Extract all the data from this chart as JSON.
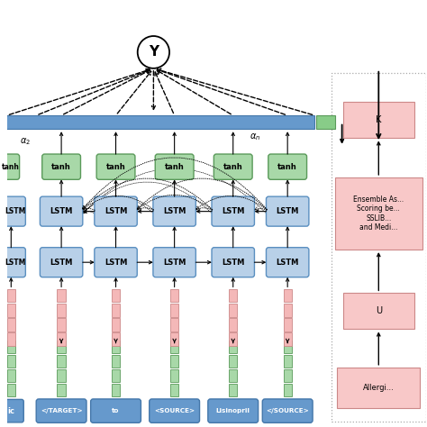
{
  "bg_color": "#ffffff",
  "lstm_fc": "#b8d0e8",
  "lstm_ec": "#5a8fc0",
  "tanh_fc": "#a8d8a8",
  "tanh_ec": "#5a9a5a",
  "pink_fc": "#f4b8b8",
  "pink_ec": "#cc8888",
  "green_fc": "#a8d8a8",
  "green_ec": "#5a9a5a",
  "blue_bar_fc": "#6699cc",
  "blue_bar_ec": "#4477aa",
  "green_bar_fc": "#88cc88",
  "green_bar_ec": "#5a9a5a",
  "word_fc": "#6699cc",
  "word_ec": "#4477aa",
  "side_fc": "#f8c8c8",
  "side_ec": "#cc8888",
  "words": [
    "</TARGET>",
    "to",
    "<SOURCE>",
    "Lisinopril",
    "</SOURCE>"
  ],
  "side_texts": [
    "K",
    "Ensemble As...\nScoring be...\nSSLIB...\nand Medi...",
    "U",
    "Allergi..."
  ]
}
